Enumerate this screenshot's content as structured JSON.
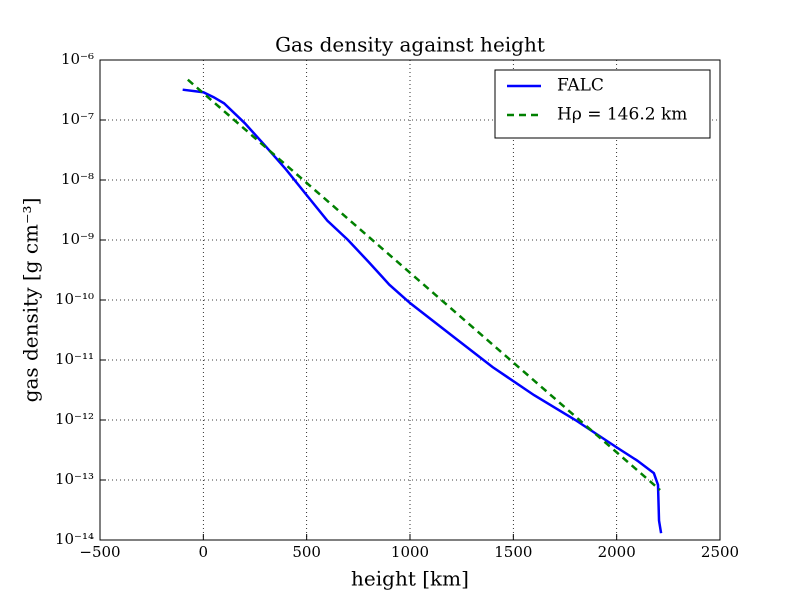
{
  "chart_data": {
    "type": "line",
    "title": "Gas density against height",
    "xlabel": "height [km]",
    "ylabel": "gas density [g cm⁻³]",
    "yscale": "log",
    "grid": true,
    "legend": "upper right",
    "xlim": [
      -500,
      2500
    ],
    "xticks": [
      {
        "value": -500,
        "label": "−500"
      },
      0,
      500,
      1000,
      1500,
      2000,
      2500
    ],
    "ylim": [
      1e-14,
      1e-06
    ],
    "yticks": [
      {
        "value": 1e-14,
        "label": "10⁻¹⁴"
      },
      {
        "value": 1e-13,
        "label": "10⁻¹³"
      },
      {
        "value": 1e-12,
        "label": "10⁻¹²"
      },
      {
        "value": 1e-11,
        "label": "10⁻¹¹"
      },
      {
        "value": 1e-10,
        "label": "10⁻¹⁰"
      },
      {
        "value": 1e-09,
        "label": "10⁻⁹"
      },
      {
        "value": 1e-08,
        "label": "10⁻⁸"
      },
      {
        "value": 1e-07,
        "label": "10⁻⁷"
      },
      {
        "value": 1e-06,
        "label": "10⁻⁶"
      }
    ],
    "series": [
      {
        "name": "FALC",
        "color": "#0000ff",
        "style": "solid",
        "x": [
          -100,
          0,
          50,
          100,
          200,
          300,
          400,
          500,
          600,
          700,
          800,
          900,
          1000,
          1200,
          1400,
          1600,
          1800,
          2000,
          2100,
          2180,
          2200,
          2205,
          2215
        ],
        "values": [
          3.2e-07,
          2.9e-07,
          2.4e-07,
          1.9e-07,
          8.9e-08,
          3.7e-08,
          1.5e-08,
          5.6e-09,
          2.1e-09,
          1e-09,
          4.3e-10,
          1.8e-10,
          8.9e-11,
          2.6e-11,
          7.6e-12,
          2.6e-12,
          1e-12,
          3.5e-13,
          2.1e-13,
          1.3e-13,
          8.3e-14,
          2.1e-14,
          1.3e-14
        ]
      },
      {
        "name": "Hρ = 146.2 km",
        "color": "#008000",
        "style": "dashed",
        "x": [
          -75,
          2210
        ],
        "values": [
          4.7e-07,
          6.8e-14
        ]
      }
    ]
  }
}
